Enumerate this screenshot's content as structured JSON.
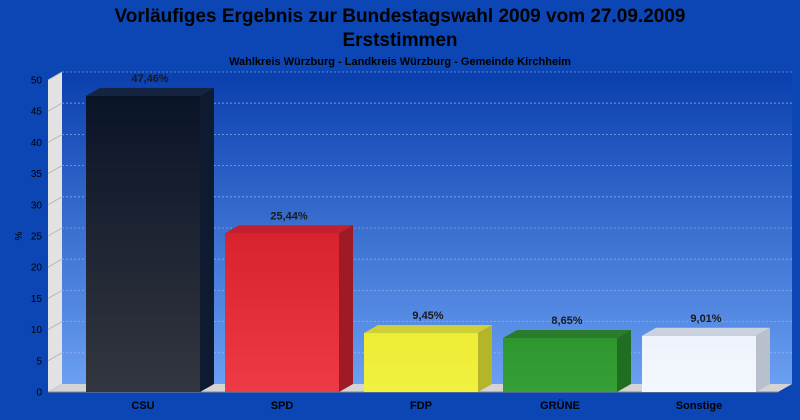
{
  "colors": {
    "background": "#0b46b4",
    "plot_top": "#0a3fae",
    "plot_bottom": "#6a9ff2",
    "grid": "#9dbcf0"
  },
  "chart_data": {
    "type": "bar",
    "title": "Vorläufiges Ergebnis zur Bundestagswahl 2009 vom 27.09.2009",
    "title_line2": "Erststimmen",
    "subtitle": "Wahlkreis Würzburg - Landkreis Würzburg - Gemeinde Kirchheim",
    "xlabel": "",
    "ylabel": "%",
    "ylim": [
      0,
      50
    ],
    "yticks": [
      0,
      5,
      10,
      15,
      20,
      25,
      30,
      35,
      40,
      45,
      50
    ],
    "grid": true,
    "categories": [
      "CSU",
      "SPD",
      "FDP",
      "GRÜNE",
      "Sonstige"
    ],
    "values": [
      47.46,
      25.44,
      9.45,
      8.65,
      9.01
    ],
    "value_labels": [
      "47,46%",
      "25,44%",
      "9,45%",
      "8,65%",
      "9,01%"
    ],
    "bar_colors": [
      {
        "top": "#0a1428",
        "bottom": "#33363e",
        "side": "#0e1a30",
        "cap": "#152440"
      },
      {
        "top": "#d8222e",
        "bottom": "#ee3a46",
        "side": "#9e1a24",
        "cap": "#c2202c"
      },
      {
        "top": "#eded36",
        "bottom": "#f0f040",
        "side": "#b5b52a",
        "cap": "#cfcf3a"
      },
      {
        "top": "#2e962e",
        "bottom": "#35a035",
        "side": "#1f6e22",
        "cap": "#2a7c2c"
      },
      {
        "top": "#eef3fc",
        "bottom": "#f4f7fd",
        "side": "#b7c0cc",
        "cap": "#c9d2de"
      }
    ]
  }
}
